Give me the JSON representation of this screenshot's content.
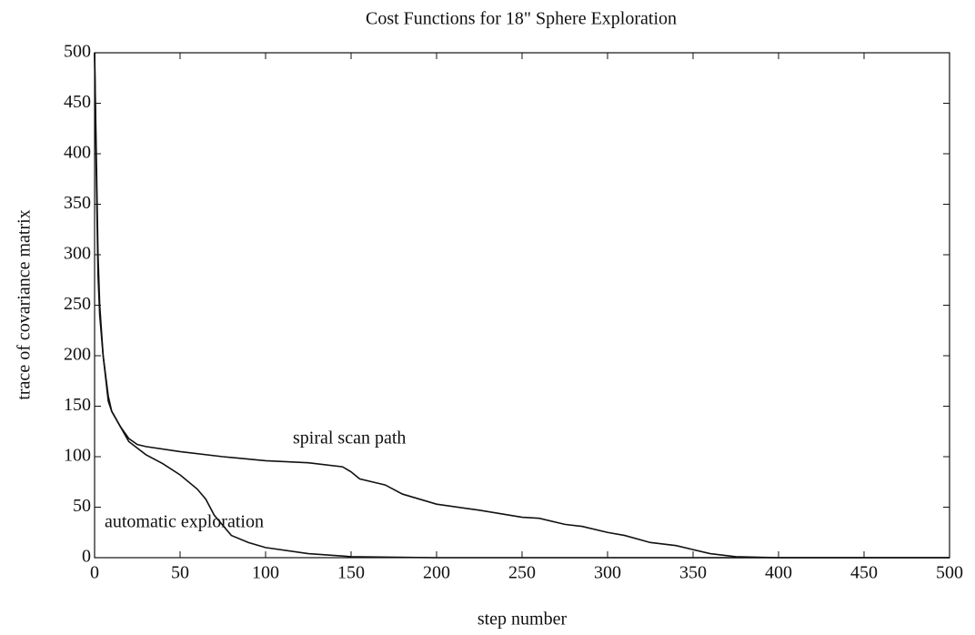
{
  "chart_data": {
    "type": "line",
    "title": "Cost Functions for 18\" Sphere Exploration",
    "xlabel": "step number",
    "ylabel": "trace of covariance matrix",
    "annotations": [
      "spiral scan path",
      "automatic exploration"
    ],
    "xlim": [
      0,
      500
    ],
    "xticks": [
      0,
      50,
      100,
      150,
      200,
      250,
      300,
      350,
      400,
      450,
      500
    ],
    "ylim": [
      0,
      500
    ],
    "yticks": [
      0,
      50,
      100,
      150,
      200,
      250,
      300,
      350,
      400,
      450,
      500
    ],
    "grid": false,
    "series": [
      {
        "name": "spiral scan path",
        "color": "#111111",
        "x": [
          0,
          1,
          2,
          3,
          5,
          8,
          10,
          15,
          20,
          25,
          30,
          50,
          75,
          100,
          125,
          145,
          150,
          155,
          165,
          170,
          180,
          200,
          225,
          250,
          260,
          275,
          285,
          300,
          310,
          325,
          340,
          350,
          360,
          375,
          400,
          500
        ],
        "values": [
          500,
          400,
          300,
          250,
          200,
          160,
          145,
          130,
          118,
          112,
          110,
          105,
          100,
          96,
          94,
          90,
          85,
          78,
          74,
          72,
          63,
          53,
          47,
          40,
          39,
          33,
          31,
          25,
          22,
          15,
          12,
          8,
          4,
          1,
          0,
          0
        ]
      },
      {
        "name": "automatic exploration",
        "color": "#111111",
        "x": [
          0,
          1,
          2,
          3,
          5,
          8,
          10,
          15,
          20,
          30,
          40,
          50,
          60,
          65,
          70,
          75,
          80,
          90,
          100,
          125,
          150,
          200,
          500
        ],
        "values": [
          500,
          380,
          280,
          240,
          200,
          155,
          145,
          130,
          115,
          102,
          93,
          82,
          68,
          58,
          42,
          32,
          22,
          15,
          10,
          4,
          1,
          0,
          0
        ]
      }
    ]
  }
}
